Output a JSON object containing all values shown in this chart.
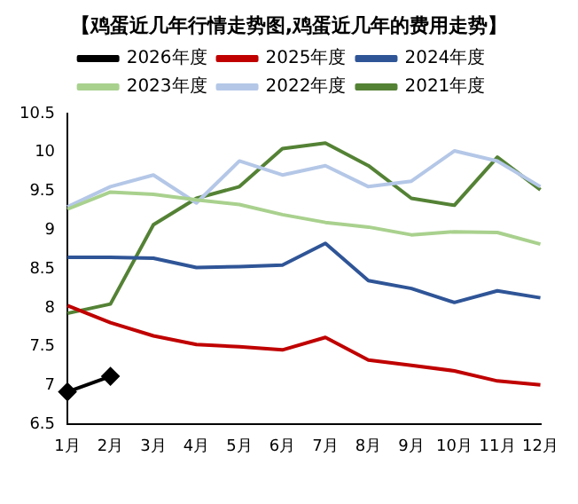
{
  "chart_data": {
    "type": "line",
    "title": "【鸡蛋近几年行情走势图,鸡蛋近几年的费用走势】",
    "categories": [
      "1月",
      "2月",
      "3月",
      "4月",
      "5月",
      "6月",
      "7月",
      "8月",
      "9月",
      "10月",
      "11月",
      "12月"
    ],
    "series": [
      {
        "name": "2026年度",
        "color": "#000000",
        "marker": "diamond",
        "values": [
          6.92,
          7.12,
          null,
          null,
          null,
          null,
          null,
          null,
          null,
          null,
          null,
          null
        ]
      },
      {
        "name": "2025年度",
        "color": "#c00000",
        "values": [
          8.03,
          7.81,
          7.64,
          7.53,
          7.5,
          7.46,
          7.62,
          7.33,
          7.26,
          7.19,
          7.06,
          7.01
        ]
      },
      {
        "name": "2024年度",
        "color": "#2f5597",
        "values": [
          8.65,
          8.65,
          8.64,
          8.52,
          8.53,
          8.55,
          8.83,
          8.35,
          8.25,
          8.07,
          8.22,
          8.13
        ]
      },
      {
        "name": "2023年度",
        "color": "#a9d18e",
        "values": [
          9.27,
          9.49,
          9.46,
          9.39,
          9.33,
          9.2,
          9.1,
          9.04,
          8.94,
          8.98,
          8.97,
          8.82
        ]
      },
      {
        "name": "2022年度",
        "color": "#b4c7e7",
        "values": [
          9.3,
          9.56,
          9.71,
          9.35,
          9.89,
          9.71,
          9.83,
          9.56,
          9.63,
          10.02,
          9.89,
          9.56
        ]
      },
      {
        "name": "2021年度",
        "color": "#548235",
        "values": [
          7.93,
          8.05,
          9.07,
          9.41,
          9.56,
          10.05,
          10.12,
          9.83,
          9.41,
          9.32,
          9.94,
          9.52
        ]
      }
    ],
    "ylim": [
      6.5,
      10.5
    ],
    "yticks": [
      6.5,
      7,
      7.5,
      8,
      8.5,
      9,
      9.5,
      10,
      10.5
    ],
    "legend": "top",
    "grid": false
  }
}
